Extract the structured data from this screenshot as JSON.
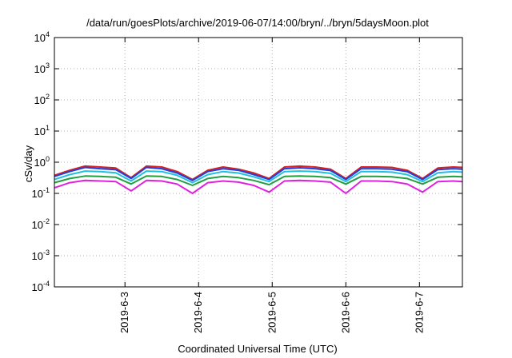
{
  "chart_data": {
    "type": "line",
    "title": "/data/run/goesPlots/archive/2019-06-07/14:00/bryn/../bryn/5daysMoon.plot",
    "xlabel": "Coordinated Universal Time (UTC)",
    "ylabel": "cSv/day",
    "yscale": "log",
    "ylim": [
      0.0001,
      10000
    ],
    "y_ticks": [
      {
        "base": "10",
        "exp": "-4",
        "value": 0.0001
      },
      {
        "base": "10",
        "exp": "-3",
        "value": 0.001
      },
      {
        "base": "10",
        "exp": "-2",
        "value": 0.01
      },
      {
        "base": "10",
        "exp": "-1",
        "value": 0.1
      },
      {
        "base": "10",
        "exp": "0",
        "value": 1
      },
      {
        "base": "10",
        "exp": "1",
        "value": 10
      },
      {
        "base": "10",
        "exp": "2",
        "value": 100
      },
      {
        "base": "10",
        "exp": "3",
        "value": 1000
      },
      {
        "base": "10",
        "exp": "4",
        "value": 10000
      }
    ],
    "xlim": [
      "2019-06-02T01:00",
      "2019-06-07T14:00"
    ],
    "x_ticks": [
      "2019-6-3",
      "2019-6-4",
      "2019-6-5",
      "2019-6-6",
      "2019-6-7"
    ],
    "grid": true,
    "legend": "none",
    "x": [
      "2019-06-02T01:00",
      "2019-06-02T06:00",
      "2019-06-02T11:00",
      "2019-06-02T16:00",
      "2019-06-02T21:00",
      "2019-06-03T02:00",
      "2019-06-03T07:00",
      "2019-06-03T12:00",
      "2019-06-03T17:00",
      "2019-06-03T22:00",
      "2019-06-04T03:00",
      "2019-06-04T08:00",
      "2019-06-04T13:00",
      "2019-06-04T18:00",
      "2019-06-04T23:00",
      "2019-06-05T04:00",
      "2019-06-05T09:00",
      "2019-06-05T14:00",
      "2019-06-05T19:00",
      "2019-06-06T00:00",
      "2019-06-06T05:00",
      "2019-06-06T10:00",
      "2019-06-06T15:00",
      "2019-06-06T20:00",
      "2019-06-07T01:00",
      "2019-06-07T06:00",
      "2019-06-07T11:00",
      "2019-06-07T14:00"
    ],
    "series": [
      {
        "color": "#d62020",
        "values": [
          0.38,
          0.55,
          0.75,
          0.7,
          0.65,
          0.32,
          0.75,
          0.7,
          0.5,
          0.28,
          0.55,
          0.7,
          0.6,
          0.45,
          0.3,
          0.7,
          0.75,
          0.7,
          0.6,
          0.3,
          0.7,
          0.7,
          0.68,
          0.55,
          0.3,
          0.65,
          0.7,
          0.68
        ]
      },
      {
        "color": "#2040e0",
        "values": [
          0.35,
          0.5,
          0.68,
          0.62,
          0.58,
          0.3,
          0.68,
          0.62,
          0.45,
          0.26,
          0.5,
          0.62,
          0.55,
          0.4,
          0.28,
          0.62,
          0.66,
          0.62,
          0.54,
          0.28,
          0.62,
          0.62,
          0.6,
          0.5,
          0.28,
          0.58,
          0.62,
          0.6
        ]
      },
      {
        "color": "#20c0e0",
        "values": [
          0.28,
          0.4,
          0.52,
          0.5,
          0.46,
          0.25,
          0.52,
          0.5,
          0.38,
          0.22,
          0.4,
          0.5,
          0.45,
          0.34,
          0.24,
          0.5,
          0.52,
          0.5,
          0.44,
          0.24,
          0.5,
          0.5,
          0.48,
          0.4,
          0.24,
          0.46,
          0.5,
          0.48
        ]
      },
      {
        "color": "#20a040",
        "values": [
          0.22,
          0.3,
          0.36,
          0.35,
          0.33,
          0.2,
          0.36,
          0.35,
          0.28,
          0.18,
          0.3,
          0.35,
          0.32,
          0.26,
          0.19,
          0.35,
          0.36,
          0.35,
          0.32,
          0.2,
          0.35,
          0.35,
          0.34,
          0.3,
          0.2,
          0.33,
          0.35,
          0.34
        ]
      },
      {
        "color": "#e020e0",
        "values": [
          0.15,
          0.22,
          0.26,
          0.25,
          0.24,
          0.12,
          0.26,
          0.25,
          0.2,
          0.1,
          0.22,
          0.25,
          0.23,
          0.18,
          0.11,
          0.25,
          0.26,
          0.25,
          0.23,
          0.1,
          0.25,
          0.25,
          0.24,
          0.2,
          0.11,
          0.24,
          0.25,
          0.24
        ]
      }
    ]
  }
}
